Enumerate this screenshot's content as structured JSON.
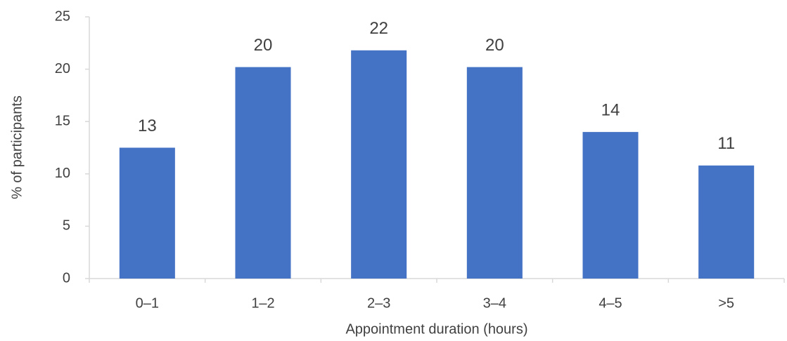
{
  "chart_data": {
    "type": "bar",
    "x_label": "Appointment duration (hours)",
    "y_label": "% of participants",
    "categories": [
      "0–1",
      "1–2",
      "2–3",
      "3–4",
      "4–5",
      ">5"
    ],
    "values": [
      12.5,
      20.2,
      21.8,
      20.2,
      14,
      10.8
    ],
    "value_labels": [
      "13",
      "20",
      "22",
      "20",
      "14",
      "11"
    ],
    "color": "#4472c4",
    "ylim": [
      0,
      25
    ],
    "yticks": [
      0,
      5,
      10,
      15,
      20,
      25
    ],
    "grid": false
  }
}
